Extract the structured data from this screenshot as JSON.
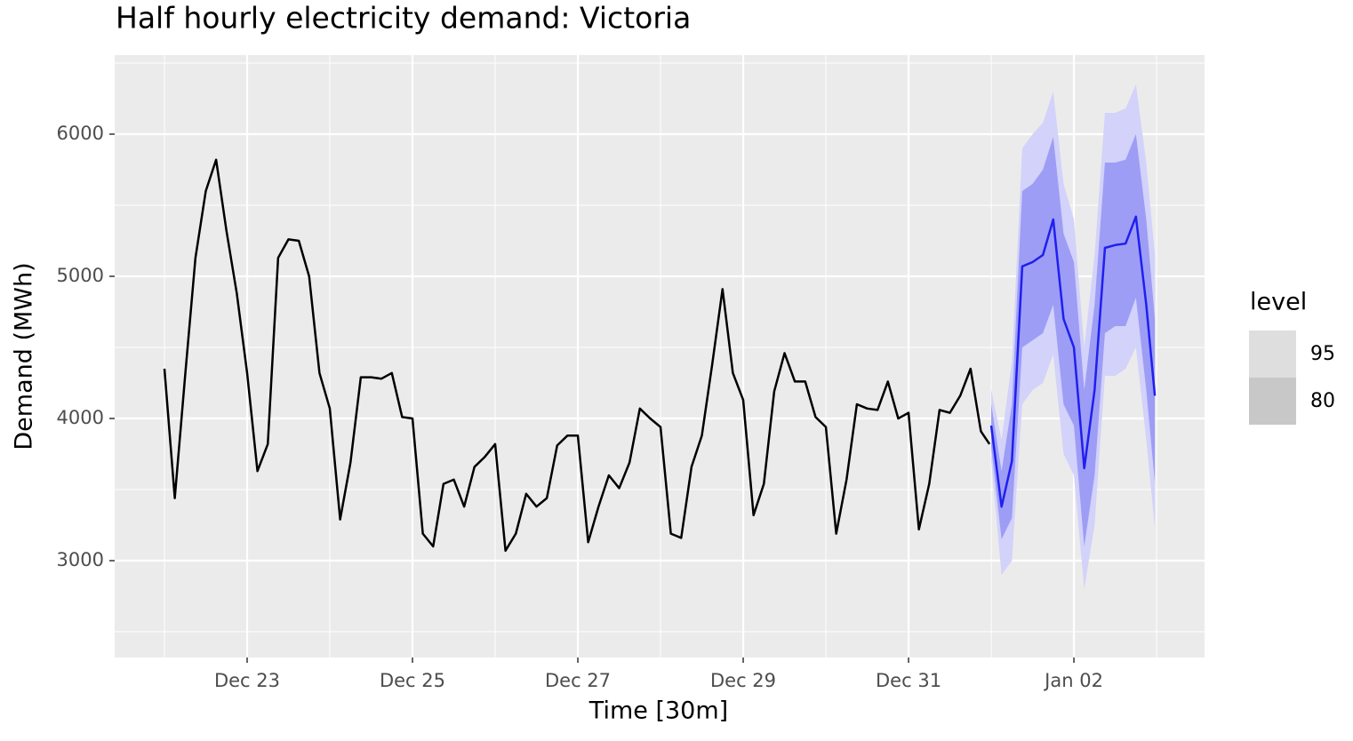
{
  "chart_data": {
    "type": "forecast-line",
    "title": "Half hourly electricity demand: Victoria",
    "x_label": "Time [30m]",
    "y_label": "Demand (MWh)",
    "xlim": [
      21.398,
      34.58
    ],
    "ylim": [
      2319,
      6556
    ],
    "xticks": [
      {
        "value": 23,
        "label": "Dec 23"
      },
      {
        "value": 25,
        "label": "Dec 25"
      },
      {
        "value": 27,
        "label": "Dec 27"
      },
      {
        "value": 29,
        "label": "Dec 29"
      },
      {
        "value": 31,
        "label": "Dec 31"
      },
      {
        "value": 33,
        "label": "Jan 02"
      }
    ],
    "xminor": [
      22,
      24,
      26,
      28,
      30,
      32,
      34
    ],
    "yticks": [
      3000,
      4000,
      5000,
      6000
    ],
    "yminor": [
      2500,
      3500,
      4500,
      5500,
      6500
    ],
    "grid": true,
    "color": "#000000",
    "x": [
      22,
      22.125,
      22.25,
      22.375,
      22.5,
      22.625,
      22.75,
      22.875,
      23,
      23.125,
      23.25,
      23.375,
      23.5,
      23.625,
      23.75,
      23.875,
      24,
      24.125,
      24.25,
      24.375,
      24.5,
      24.625,
      24.75,
      24.875,
      25,
      25.125,
      25.25,
      25.375,
      25.5,
      25.625,
      25.75,
      25.875,
      26,
      26.125,
      26.25,
      26.375,
      26.5,
      26.625,
      26.75,
      26.875,
      27,
      27.125,
      27.25,
      27.375,
      27.5,
      27.625,
      27.75,
      27.875,
      28,
      28.125,
      28.25,
      28.375,
      28.5,
      28.625,
      28.75,
      28.875,
      29,
      29.125,
      29.25,
      29.375,
      29.5,
      29.625,
      29.75,
      29.875,
      30,
      30.125,
      30.25,
      30.375,
      30.5,
      30.625,
      30.75,
      30.875,
      31,
      31.125,
      31.25,
      31.375,
      31.5,
      31.625,
      31.75,
      31.875,
      31.979
    ],
    "values": [
      4350,
      3440,
      4300,
      5130,
      5600,
      5820,
      5320,
      4880,
      4320,
      3630,
      3820,
      5130,
      5260,
      5250,
      5000,
      4320,
      4070,
      3290,
      3690,
      4290,
      4290,
      4280,
      4320,
      4010,
      4000,
      3190,
      3100,
      3540,
      3570,
      3380,
      3660,
      3730,
      3820,
      3070,
      3190,
      3470,
      3380,
      3440,
      3810,
      3880,
      3880,
      3130,
      3380,
      3600,
      3510,
      3690,
      4070,
      4000,
      3940,
      3190,
      3160,
      3660,
      3880,
      4380,
      4910,
      4320,
      4130,
      3320,
      3540,
      4190,
      4460,
      4260,
      4260,
      4010,
      3940,
      3190,
      3570,
      4100,
      4070,
      4060,
      4260,
      4000,
      4040,
      3220,
      3540,
      4060,
      4040,
      4160,
      4350,
      3910,
      3820
    ],
    "forecast": {
      "color": "#1f1ff0",
      "x": [
        32,
        32.125,
        32.25,
        32.375,
        32.5,
        32.625,
        32.75,
        32.875,
        33,
        33.125,
        33.25,
        33.375,
        33.5,
        33.625,
        33.75,
        33.875,
        33.979
      ],
      "mean": [
        3950,
        3380,
        3700,
        5070,
        5100,
        5150,
        5400,
        4700,
        4500,
        3650,
        4200,
        5200,
        5220,
        5230,
        5420,
        4800,
        4160
      ],
      "legend_title": "level",
      "intervals": [
        {
          "level": 95,
          "color": "#d2d2fa",
          "legend_color": "#dedede",
          "lower": [
            3700,
            2900,
            3000,
            4100,
            4200,
            4250,
            4450,
            3750,
            3600,
            2800,
            3250,
            4300,
            4300,
            4350,
            4500,
            3850,
            3230
          ],
          "upper": [
            4200,
            3850,
            4400,
            5900,
            6000,
            6080,
            6300,
            5650,
            5400,
            4500,
            5150,
            6150,
            6150,
            6180,
            6350,
            5800,
            5150
          ]
        },
        {
          "level": 80,
          "color": "#9d9df5",
          "legend_color": "#c8c8c8",
          "lower": [
            3800,
            3150,
            3300,
            4500,
            4550,
            4600,
            4800,
            4100,
            3950,
            3100,
            3600,
            4600,
            4650,
            4650,
            4850,
            4200,
            3550
          ],
          "upper": [
            4100,
            3630,
            4100,
            5600,
            5650,
            5750,
            5980,
            5300,
            5100,
            4200,
            4800,
            5800,
            5800,
            5820,
            6000,
            5400,
            4700
          ]
        }
      ]
    }
  }
}
